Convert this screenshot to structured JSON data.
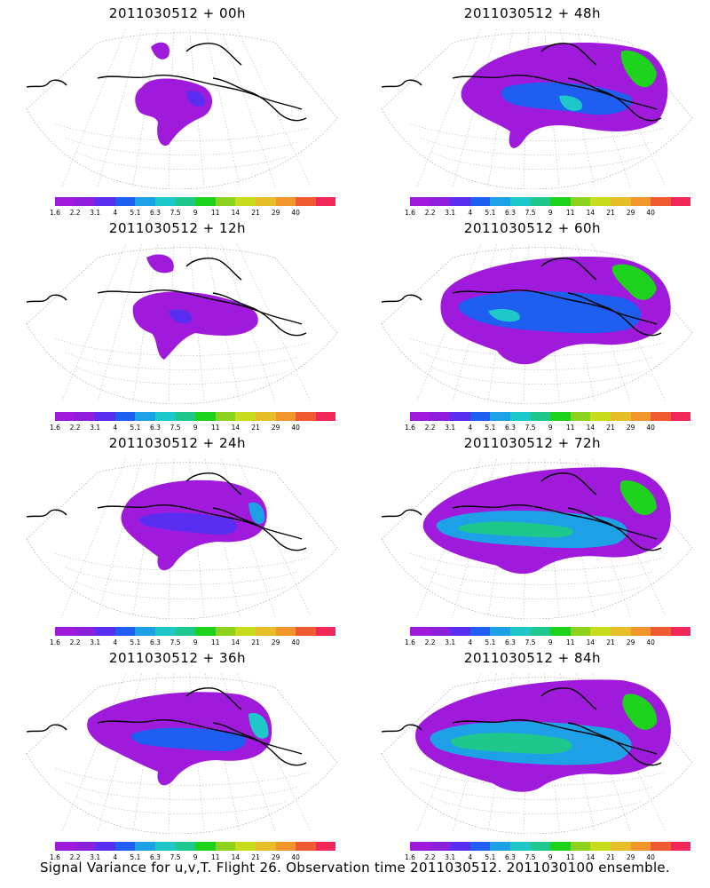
{
  "panels": [
    {
      "title": "2011030512 + 00h",
      "lead": 0
    },
    {
      "title": "2011030512 + 48h",
      "lead": 48
    },
    {
      "title": "2011030512 + 12h",
      "lead": 12
    },
    {
      "title": "2011030512 + 60h",
      "lead": 60
    },
    {
      "title": "2011030512 + 24h",
      "lead": 24
    },
    {
      "title": "2011030512 + 72h",
      "lead": 72
    },
    {
      "title": "2011030512 + 36h",
      "lead": 36
    },
    {
      "title": "2011030512 + 84h",
      "lead": 84
    }
  ],
  "colorbar": {
    "labels": [
      "1.6",
      "2.2",
      "3.1",
      "4",
      "5.1",
      "6.3",
      "7.5",
      "9",
      "11",
      "14",
      "21",
      "29",
      "40"
    ],
    "colors": [
      "#a01adc",
      "#8c1edc",
      "#5a2ef0",
      "#1e5ef0",
      "#1ea0e6",
      "#1ec8c8",
      "#1ec88c",
      "#1ed21e",
      "#8cd21e",
      "#c8dc1e",
      "#e6be28",
      "#f0962d",
      "#f05a32",
      "#f0285a"
    ]
  },
  "caption": "Signal Variance for u,v,T. Flight 26. Observation time 2011030512. 2011030100 ensemble."
}
